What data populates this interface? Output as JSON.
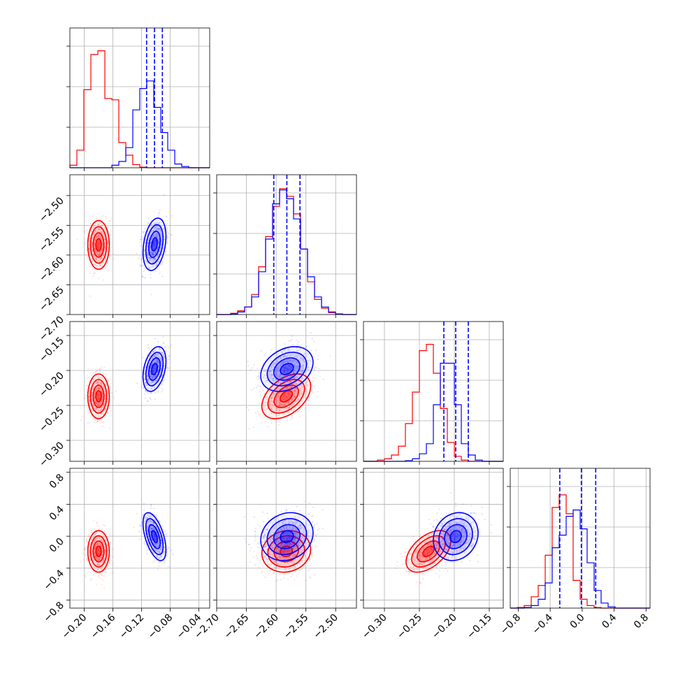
{
  "chart_data": {
    "type": "corner",
    "grid": true,
    "parameters": [
      {
        "ticks": [
          -0.2,
          -0.16,
          -0.12,
          -0.08,
          -0.04
        ],
        "tick_labels": [
          "−0.20",
          "−0.16",
          "−0.12",
          "−0.08",
          "−0.04"
        ],
        "range": [
          -0.22,
          -0.025
        ]
      },
      {
        "ticks": [
          -2.7,
          -2.65,
          -2.6,
          -2.55,
          -2.5
        ],
        "tick_labels": [
          "−2.70",
          "−2.65",
          "−2.60",
          "−2.55",
          "−2.50"
        ],
        "range": [
          -2.7,
          -2.465
        ]
      },
      {
        "ticks": [
          -0.3,
          -0.25,
          -0.2,
          -0.15
        ],
        "tick_labels": [
          "−0.30",
          "−0.25",
          "−0.20",
          "−0.15"
        ],
        "range": [
          -0.33,
          -0.13
        ]
      },
      {
        "ticks": [
          -0.8,
          -0.4,
          0.0,
          0.4,
          0.8
        ],
        "tick_labels": [
          "−0.8",
          "−0.4",
          "0.0",
          "0.4",
          "0.8"
        ],
        "range": [
          -0.9,
          0.85
        ]
      }
    ],
    "series": [
      {
        "color": "#ff0000",
        "mean": [
          -0.18,
          -2.583,
          -0.237,
          -0.19
        ],
        "std": [
          0.0075,
          0.0205,
          0.016,
          0.13
        ],
        "corr": [
          [
            0,
            0,
            0,
            0
          ],
          [
            0,
            0,
            0.45,
            0.1
          ],
          [
            0,
            0.45,
            0,
            0.5
          ],
          [
            0,
            0.1,
            0.5,
            0
          ]
        ],
        "hist1d": [
          {
            "edges": [
              -0.22,
              -0.025
            ],
            "counts": [
              0.02,
              0.14,
              0.62,
              0.9,
              0.93,
              0.55,
              0.54,
              0.2,
              0.1,
              0.025,
              0.005,
              0,
              0,
              0,
              0,
              0,
              0,
              0,
              0,
              0
            ]
          },
          {
            "edges": [
              -2.7,
              -2.465
            ],
            "counts": [
              0,
              0,
              0.01,
              0.03,
              0.06,
              0.16,
              0.38,
              0.62,
              0.86,
              1.0,
              0.94,
              0.8,
              0.52,
              0.26,
              0.12,
              0.05,
              0.015,
              0.005,
              0,
              0
            ]
          },
          {
            "edges": [
              -0.33,
              -0.13
            ],
            "counts": [
              0,
              0,
              0.01,
              0.02,
              0.05,
              0.12,
              0.3,
              0.55,
              0.88,
              0.93,
              0.7,
              0.42,
              0.15,
              0.04,
              0.01,
              0,
              0,
              0,
              0,
              0
            ]
          },
          {
            "edges": [
              -0.9,
              0.85
            ],
            "counts": [
              0,
              0.005,
              0.02,
              0.09,
              0.18,
              0.42,
              0.8,
              0.9,
              0.75,
              0.22,
              0.07,
              0.02,
              0.005,
              0,
              0,
              0,
              0,
              0,
              0,
              0
            ]
          }
        ]
      },
      {
        "color": "#0000ff",
        "mean": [
          -0.102,
          -2.582,
          -0.198,
          -0.005
        ],
        "std": [
          0.008,
          0.022,
          0.016,
          0.15
        ],
        "quantiles": [
          [
            -0.113,
            -0.102,
            -0.091
          ],
          [
            -2.604,
            -2.582,
            -2.56
          ],
          [
            -0.215,
            -0.198,
            -0.18
          ],
          [
            -0.28,
            -0.01,
            0.17
          ]
        ],
        "corr": [
          [
            0,
            0.3,
            0.35,
            -0.55
          ],
          [
            0.3,
            0,
            0.3,
            0.15
          ],
          [
            0.35,
            0.3,
            0,
            0.15
          ],
          [
            -0.55,
            0.15,
            0.15,
            0
          ]
        ],
        "hist1d": [
          {
            "edges": [
              -0.22,
              -0.025
            ],
            "counts": [
              0,
              0,
              0,
              0,
              0,
              0,
              0.02,
              0.05,
              0.16,
              0.46,
              0.63,
              0.69,
              0.48,
              0.28,
              0.14,
              0.03,
              0.01,
              0,
              0,
              0
            ]
          },
          {
            "edges": [
              -2.7,
              -2.465
            ],
            "counts": [
              0,
              0,
              0.005,
              0.02,
              0.06,
              0.14,
              0.34,
              0.6,
              0.88,
              0.99,
              0.92,
              0.76,
              0.52,
              0.3,
              0.14,
              0.06,
              0.02,
              0.005,
              0,
              0
            ]
          },
          {
            "edges": [
              -0.33,
              -0.13
            ],
            "counts": [
              0,
              0,
              0,
              0,
              0,
              0,
              0.005,
              0.02,
              0.06,
              0.14,
              0.45,
              0.78,
              0.78,
              0.45,
              0.14,
              0.05,
              0.01,
              0,
              0,
              0
            ]
          },
          {
            "edges": [
              -0.9,
              0.85
            ],
            "counts": [
              0,
              0,
              0.005,
              0.02,
              0.07,
              0.2,
              0.48,
              0.58,
              0.73,
              0.78,
              0.63,
              0.36,
              0.14,
              0.04,
              0.01,
              0,
              0,
              0,
              0,
              0
            ]
          }
        ]
      }
    ]
  }
}
